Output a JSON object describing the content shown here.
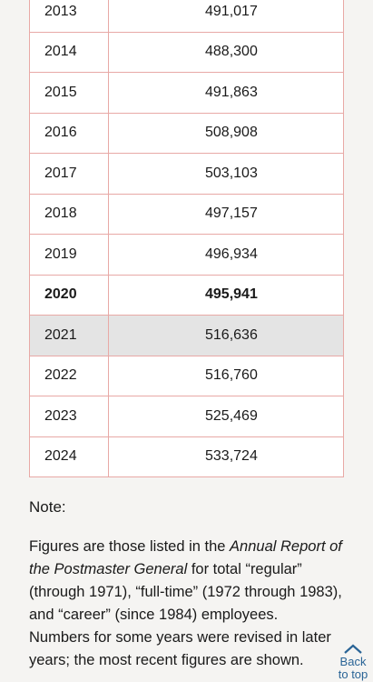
{
  "table": {
    "rows": [
      {
        "year": "2013",
        "value": "491,017",
        "bold": false,
        "highlight": false
      },
      {
        "year": "2014",
        "value": "488,300",
        "bold": false,
        "highlight": false
      },
      {
        "year": "2015",
        "value": "491,863",
        "bold": false,
        "highlight": false
      },
      {
        "year": "2016",
        "value": "508,908",
        "bold": false,
        "highlight": false
      },
      {
        "year": "2017",
        "value": "503,103",
        "bold": false,
        "highlight": false
      },
      {
        "year": "2018",
        "value": "497,157",
        "bold": false,
        "highlight": false
      },
      {
        "year": "2019",
        "value": "496,934",
        "bold": false,
        "highlight": false
      },
      {
        "year": "2020",
        "value": "495,941",
        "bold": true,
        "highlight": false
      },
      {
        "year": "2021",
        "value": "516,636",
        "bold": false,
        "highlight": true
      },
      {
        "year": "2022",
        "value": "516,760",
        "bold": false,
        "highlight": false
      },
      {
        "year": "2023",
        "value": "525,469",
        "bold": false,
        "highlight": false
      },
      {
        "year": "2024",
        "value": "533,724",
        "bold": false,
        "highlight": false
      }
    ]
  },
  "note": {
    "label": "Note:",
    "text_before": "Figures are those listed in the ",
    "report_title": "Annual Report of the Postmaster General",
    "text_after": " for total “regular” (through 1971), “full-time” (1972 through 1983), and “career” (since 1984) employees. Numbers for some years were revised in later years; the most recent figures are shown."
  },
  "back_to_top": {
    "line1": "Back",
    "line2": "to top",
    "icon": "chevron-up-icon"
  },
  "colors": {
    "border": "#e8a9a6",
    "highlight": "#e4e4e4",
    "link": "#2a6496"
  }
}
